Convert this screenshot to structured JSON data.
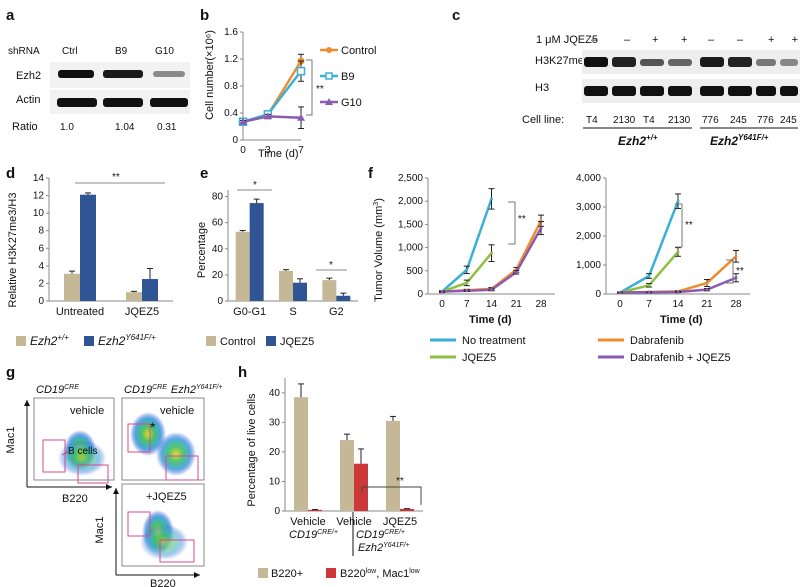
{
  "panels": {
    "a": {
      "letter": "a",
      "shrna_label": "shRNA",
      "lanes": [
        "Ctrl",
        "B9",
        "G10"
      ],
      "rows": [
        "Ezh2",
        "Actin"
      ],
      "ratio_label": "Ratio",
      "ratios": [
        "1.0",
        "1.04",
        "0.31"
      ]
    },
    "b": {
      "letter": "b",
      "significance": "**",
      "chart": {
        "type": "line",
        "x": [
          0,
          3,
          7
        ],
        "xticks": [
          "0",
          "3",
          "7"
        ],
        "yticks": [
          "0",
          "0.4",
          "0.8",
          "1.2",
          "1.6"
        ],
        "ylim": [
          0,
          1.6
        ],
        "xlabel": "Time (d)",
        "ylabel": "Cell number(×10⁶)",
        "series": [
          {
            "name": "Control",
            "color": "#f08c30",
            "marker": "circle",
            "values": [
              0.27,
              0.37,
              1.17
            ],
            "err": [
              0.02,
              0.03,
              0.1
            ]
          },
          {
            "name": "B9",
            "color": "#3ab0d8",
            "marker": "square",
            "values": [
              0.27,
              0.38,
              1.02
            ],
            "err": [
              0.02,
              0.03,
              0.15
            ]
          },
          {
            "name": "G10",
            "color": "#8a5bb0",
            "marker": "triangle",
            "values": [
              0.27,
              0.35,
              0.33
            ],
            "err": [
              0.02,
              0.03,
              0.16
            ]
          }
        ]
      }
    },
    "c": {
      "letter": "c",
      "treatment_label": "1 μM JQEZ5",
      "signs": [
        "–",
        "–",
        "+",
        "+",
        "–",
        "–",
        "+",
        "+"
      ],
      "rows": [
        "H3K27me3",
        "H3"
      ],
      "cell_line_label": "Cell line:",
      "cell_lines": [
        "T4",
        "2130",
        "T4",
        "2130",
        "776",
        "245",
        "776",
        "245"
      ],
      "genotypes": [
        {
          "gene": "Ezh2",
          "sup": "+/+"
        },
        {
          "gene": "Ezh2",
          "sup": "Y641F/+"
        }
      ]
    },
    "d": {
      "letter": "d",
      "significance": "**",
      "legend": [
        {
          "gene": "Ezh2",
          "sup": "+/+"
        },
        {
          "gene": "Ezh2",
          "sup": "Y641F/+"
        }
      ],
      "chart": {
        "type": "bar",
        "categories": [
          "Untreated",
          "JQEZ5"
        ],
        "yticks": [
          "0",
          "2",
          "4",
          "6",
          "8",
          "10",
          "12",
          "14"
        ],
        "ylim": [
          0,
          14
        ],
        "ylabel": "Relative H3K27me3/H3",
        "series": [
          {
            "name": "Ezh2 +/+",
            "color": "#c4b896",
            "values": [
              3.1,
              1.0
            ],
            "err": [
              0.3,
              0.1
            ]
          },
          {
            "name": "Ezh2 Y641F/+",
            "color": "#2f5595",
            "values": [
              12.1,
              2.5
            ],
            "err": [
              0.2,
              1.2
            ]
          }
        ]
      }
    },
    "e": {
      "letter": "e",
      "significance": [
        "*",
        "*"
      ],
      "legend": [
        "Control",
        "JQEZ5"
      ],
      "chart": {
        "type": "bar",
        "categories": [
          "G0-G1",
          "S",
          "G2"
        ],
        "yticks": [
          "0",
          "20",
          "40",
          "60",
          "80"
        ],
        "ylim": [
          0,
          85
        ],
        "ylabel": "Percentage",
        "series": [
          {
            "name": "Control",
            "color": "#c4b896",
            "values": [
              53,
              23,
              16
            ],
            "err": [
              1,
              1,
              1.5
            ]
          },
          {
            "name": "JQEZ5",
            "color": "#2f5595",
            "values": [
              75,
              14,
              4
            ],
            "err": [
              3,
              3,
              2
            ]
          }
        ]
      }
    },
    "f": {
      "letter": "f",
      "ylabel_main": "Tumor Volume (mm",
      "ylabel_sup": "3",
      "ylabel_close": ")",
      "significance": [
        "**",
        "**",
        "**"
      ],
      "charts": [
        {
          "type": "line",
          "x": [
            0,
            7,
            14,
            21,
            28
          ],
          "xticks": [
            "0",
            "7",
            "14",
            "21",
            "28"
          ],
          "yticks": [
            "0",
            "500",
            "1,000",
            "1,500",
            "2,000",
            "2,500"
          ],
          "ylim": [
            0,
            2500
          ],
          "xlabel": "Time (d)",
          "series": [
            {
              "name": "No treatment",
              "color": "#3ab0d8",
              "values": [
                50,
                520,
                2050,
                null,
                null
              ],
              "err": [
                20,
                80,
                220,
                0,
                0
              ]
            },
            {
              "name": "Dabrafenib",
              "color": "#f08c30",
              "values": [
                50,
                80,
                110,
                520,
                1580
              ],
              "err": [
                10,
                20,
                30,
                50,
                120
              ]
            },
            {
              "name": "JQEZ5",
              "color": "#8fbf3f",
              "values": [
                50,
                240,
                880,
                null,
                null
              ],
              "err": [
                15,
                60,
                180,
                0,
                0
              ]
            },
            {
              "name": "Dabrafenib + JQEZ5",
              "color": "#8a5bb0",
              "values": [
                50,
                70,
                90,
                470,
                1420
              ],
              "err": [
                10,
                15,
                20,
                40,
                140
              ]
            }
          ]
        },
        {
          "type": "line",
          "x": [
            0,
            7,
            14,
            21,
            28
          ],
          "xticks": [
            "0",
            "7",
            "14",
            "21",
            "28"
          ],
          "yticks": [
            "0",
            "1,000",
            "2,000",
            "3,000",
            "4,000"
          ],
          "ylim": [
            0,
            4000
          ],
          "xlabel": "Time (d)",
          "series": [
            {
              "name": "No treatment",
              "color": "#3ab0d8",
              "values": [
                50,
                620,
                3200,
                null,
                null
              ],
              "err": [
                20,
                80,
                250,
                0,
                0
              ]
            },
            {
              "name": "Dabrafenib",
              "color": "#f08c30",
              "values": [
                50,
                70,
                90,
                380,
                1300
              ],
              "err": [
                10,
                15,
                20,
                120,
                200
              ]
            },
            {
              "name": "JQEZ5",
              "color": "#8fbf3f",
              "values": [
                50,
                300,
                1450,
                null,
                null
              ],
              "err": [
                15,
                60,
                150,
                0,
                0
              ]
            },
            {
              "name": "Dabrafenib + JQEZ5",
              "color": "#8a5bb0",
              "values": [
                50,
                60,
                70,
                150,
                560
              ],
              "err": [
                10,
                10,
                15,
                40,
                140
              ]
            }
          ]
        }
      ]
    },
    "g": {
      "letter": "g",
      "genotypes": [
        {
          "gene": "CD19",
          "sup": "CRE"
        },
        {
          "gene": "CD19",
          "sup": "CRE",
          "gene2": "Ezh2",
          "sup2": "Y641F/+"
        }
      ],
      "plots": [
        {
          "condition": "vehicle",
          "annotation": "B cells"
        },
        {
          "condition": "vehicle",
          "annotation": "*"
        },
        {
          "condition": "+JQEZ5",
          "annotation": ""
        }
      ],
      "xlabel": "B220",
      "ylabel": "Mac1"
    },
    "h": {
      "letter": "h",
      "significance": "**",
      "groups": [
        {
          "gene": "CD19",
          "sup": "CRE/+"
        },
        {
          "gene": "CD19",
          "sup": "CRE/+",
          "gene2": "Ezh2",
          "sup2": "Y641F/+"
        }
      ],
      "legend": [
        "B220+",
        {
          "a": "B220",
          "a_sup": "low",
          "b": ", Mac1",
          "b_sup": "low"
        }
      ],
      "chart": {
        "type": "bar",
        "categories": [
          "Vehicle",
          "Vehicle",
          "JQEZ5"
        ],
        "yticks": [
          "0",
          "10",
          "20",
          "30",
          "40"
        ],
        "ylim": [
          0,
          45
        ],
        "ylabel": "Percentage of live cells",
        "series": [
          {
            "name": "B220+",
            "color": "#c4b896",
            "values": [
              38.5,
              24,
              30.5
            ],
            "err": [
              4.5,
              2,
              1.5
            ]
          },
          {
            "name": "B220low, Mac1low",
            "color": "#cc3838",
            "values": [
              0.4,
              16,
              0.7
            ],
            "err": [
              0.1,
              5,
              0.1
            ]
          }
        ]
      }
    }
  },
  "chart_data": [
    {
      "panel": "b",
      "type": "line",
      "x": [
        0,
        3,
        7
      ],
      "xlabel": "Time (d)",
      "ylabel": "Cell number(×10⁶)",
      "ylim": [
        0,
        1.6
      ],
      "series": [
        {
          "name": "Control",
          "values": [
            0.27,
            0.37,
            1.17
          ]
        },
        {
          "name": "B9",
          "values": [
            0.27,
            0.38,
            1.02
          ]
        },
        {
          "name": "G10",
          "values": [
            0.27,
            0.35,
            0.33
          ]
        }
      ]
    },
    {
      "panel": "d",
      "type": "bar",
      "categories": [
        "Untreated",
        "JQEZ5"
      ],
      "ylabel": "Relative H3K27me3/H3",
      "ylim": [
        0,
        14
      ],
      "series": [
        {
          "name": "Ezh2 +/+",
          "values": [
            3.1,
            1.0
          ]
        },
        {
          "name": "Ezh2 Y641F/+",
          "values": [
            12.1,
            2.5
          ]
        }
      ]
    },
    {
      "panel": "e",
      "type": "bar",
      "categories": [
        "G0-G1",
        "S",
        "G2"
      ],
      "ylabel": "Percentage",
      "ylim": [
        0,
        85
      ],
      "series": [
        {
          "name": "Control",
          "values": [
            53,
            23,
            16
          ]
        },
        {
          "name": "JQEZ5",
          "values": [
            75,
            14,
            4
          ]
        }
      ]
    },
    {
      "panel": "f-left",
      "type": "line",
      "x": [
        0,
        7,
        14,
        21,
        28
      ],
      "xlabel": "Time (d)",
      "ylabel": "Tumor Volume (mm3)",
      "ylim": [
        0,
        2500
      ],
      "series": [
        {
          "name": "No treatment",
          "values": [
            50,
            520,
            2050,
            null,
            null
          ]
        },
        {
          "name": "Dabrafenib",
          "values": [
            50,
            80,
            110,
            520,
            1580
          ]
        },
        {
          "name": "JQEZ5",
          "values": [
            50,
            240,
            880,
            null,
            null
          ]
        },
        {
          "name": "Dabrafenib + JQEZ5",
          "values": [
            50,
            70,
            90,
            470,
            1420
          ]
        }
      ]
    },
    {
      "panel": "f-right",
      "type": "line",
      "x": [
        0,
        7,
        14,
        21,
        28
      ],
      "xlabel": "Time (d)",
      "ylim": [
        0,
        4000
      ],
      "series": [
        {
          "name": "No treatment",
          "values": [
            50,
            620,
            3200,
            null,
            null
          ]
        },
        {
          "name": "Dabrafenib",
          "values": [
            50,
            70,
            90,
            380,
            1300
          ]
        },
        {
          "name": "JQEZ5",
          "values": [
            50,
            300,
            1450,
            null,
            null
          ]
        },
        {
          "name": "Dabrafenib + JQEZ5",
          "values": [
            50,
            60,
            70,
            150,
            560
          ]
        }
      ]
    },
    {
      "panel": "h",
      "type": "bar",
      "categories": [
        "Vehicle",
        "Vehicle",
        "JQEZ5"
      ],
      "ylabel": "Percentage of live cells",
      "ylim": [
        0,
        45
      ],
      "series": [
        {
          "name": "B220+",
          "values": [
            38.5,
            24,
            30.5
          ]
        },
        {
          "name": "B220low, Mac1low",
          "values": [
            0.4,
            16,
            0.7
          ]
        }
      ]
    }
  ]
}
